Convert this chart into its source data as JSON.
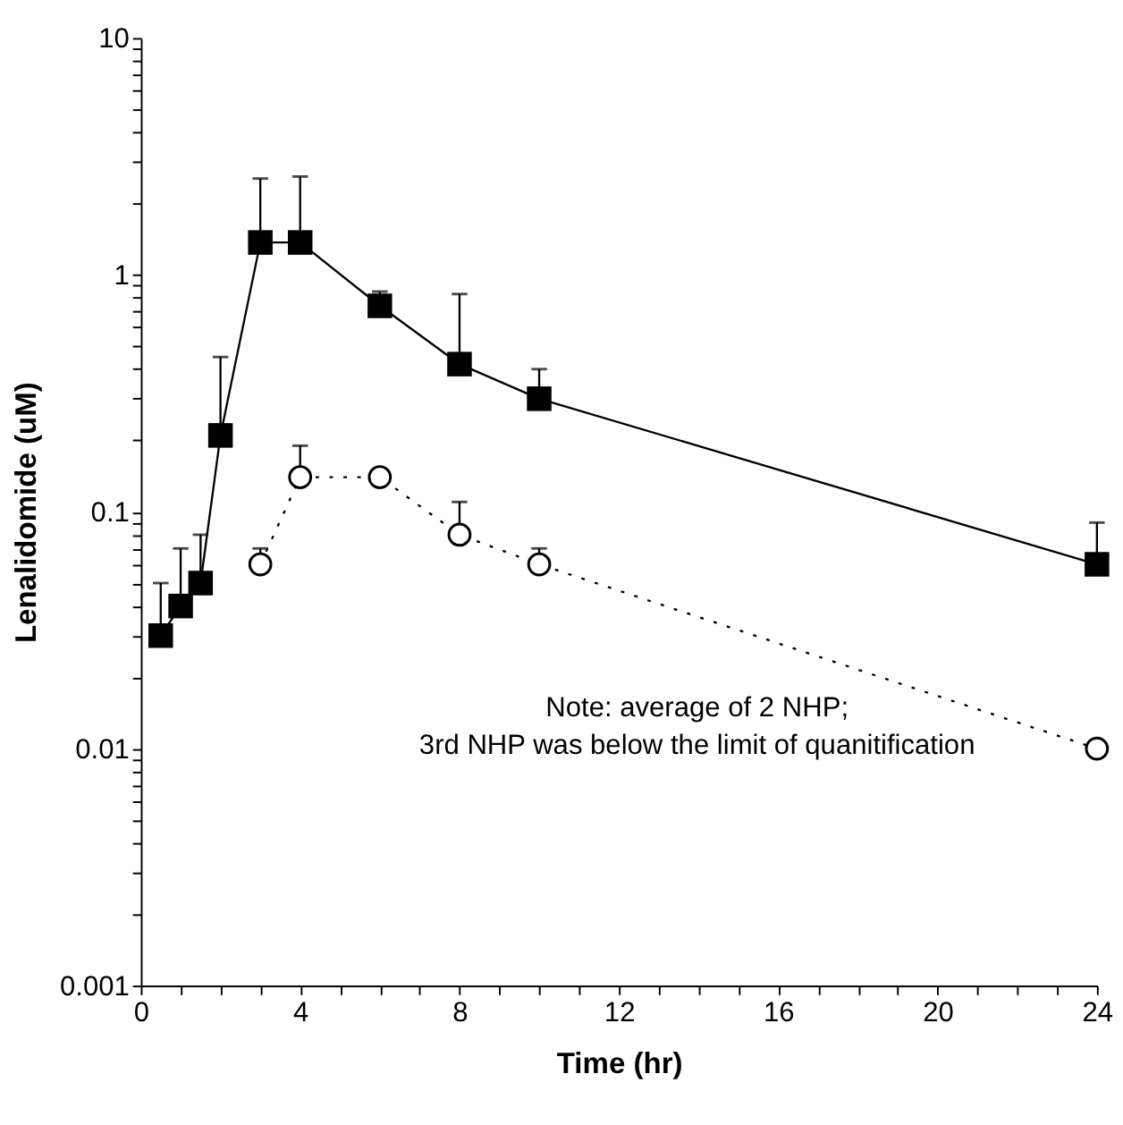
{
  "chart_data": {
    "type": "line",
    "xlabel": "Time (hr)",
    "ylabel": "Lenalidomide (uM)",
    "log": "y",
    "grid": false,
    "xlim": [
      0,
      24
    ],
    "ylim": [
      0.001,
      10
    ],
    "xticks": [
      0,
      {
        "value": 1,
        "label": null
      },
      {
        "value": 2,
        "label": null
      },
      {
        "value": 3,
        "label": null
      },
      4,
      {
        "value": 5,
        "label": null
      },
      {
        "value": 6,
        "label": null
      },
      {
        "value": 7,
        "label": null
      },
      8,
      {
        "value": 9,
        "label": null
      },
      {
        "value": 10,
        "label": null
      },
      {
        "value": 11,
        "label": null
      },
      12,
      {
        "value": 13,
        "label": null
      },
      {
        "value": 14,
        "label": null
      },
      {
        "value": 15,
        "label": null
      },
      16,
      {
        "value": 17,
        "label": null
      },
      {
        "value": 18,
        "label": null
      },
      {
        "value": 19,
        "label": null
      },
      20,
      {
        "value": 21,
        "label": null
      },
      {
        "value": 22,
        "label": null
      },
      {
        "value": 23,
        "label": null
      },
      24
    ],
    "yticks": [
      0.001,
      {
        "value": 0.002,
        "label": null
      },
      {
        "value": 0.003,
        "label": null
      },
      {
        "value": 0.004,
        "label": null
      },
      {
        "value": 0.005,
        "label": null
      },
      {
        "value": 0.006,
        "label": null
      },
      {
        "value": 0.007,
        "label": null
      },
      {
        "value": 0.008,
        "label": null
      },
      {
        "value": 0.009,
        "label": null
      },
      0.01,
      {
        "value": 0.02,
        "label": null
      },
      {
        "value": 0.03,
        "label": null
      },
      {
        "value": 0.04,
        "label": null
      },
      {
        "value": 0.05,
        "label": null
      },
      {
        "value": 0.06,
        "label": null
      },
      {
        "value": 0.07,
        "label": null
      },
      {
        "value": 0.08,
        "label": null
      },
      {
        "value": 0.09,
        "label": null
      },
      0.1,
      {
        "value": 0.2,
        "label": null
      },
      {
        "value": 0.3,
        "label": null
      },
      {
        "value": 0.4,
        "label": null
      },
      {
        "value": 0.5,
        "label": null
      },
      {
        "value": 0.6,
        "label": null
      },
      {
        "value": 0.7,
        "label": null
      },
      {
        "value": 0.8,
        "label": null
      },
      {
        "value": 0.9,
        "label": null
      },
      1,
      {
        "value": 2,
        "label": null
      },
      {
        "value": 3,
        "label": null
      },
      {
        "value": 4,
        "label": null
      },
      {
        "value": 5,
        "label": null
      },
      {
        "value": 6,
        "label": null
      },
      {
        "value": 7,
        "label": null
      },
      {
        "value": 8,
        "label": null
      },
      {
        "value": 9,
        "label": null
      },
      10
    ],
    "series": [
      {
        "color": "#000000",
        "marker": "square",
        "line_style": "solid",
        "x": [
          0.5,
          1,
          1.5,
          2,
          3,
          4,
          6,
          8,
          10,
          24
        ],
        "values": [
          0.03,
          0.04,
          0.05,
          0.21,
          1.37,
          1.37,
          0.74,
          0.42,
          0.3,
          0.06
        ],
        "errors": [
          [
            0.03,
            0.05
          ],
          [
            0.04,
            0.07
          ],
          [
            0.05,
            0.08
          ],
          [
            0.21,
            0.45
          ],
          [
            1.37,
            2.55
          ],
          [
            1.37,
            2.6
          ],
          [
            0.74,
            0.85
          ],
          [
            0.42,
            0.83
          ],
          [
            0.3,
            0.4
          ],
          [
            0.06,
            0.09
          ]
        ]
      },
      {
        "color": "#000000",
        "marker": "circle",
        "line_style": "dotted",
        "x": [
          3,
          4,
          6,
          8,
          10,
          24
        ],
        "values": [
          0.06,
          0.14,
          0.14,
          0.08,
          0.06,
          0.01
        ],
        "errors": [
          [
            0.06,
            0.07
          ],
          [
            0.14,
            0.19
          ],
          null,
          [
            0.08,
            0.11
          ],
          [
            0.06,
            0.07
          ],
          null
        ]
      }
    ],
    "annotations": [
      "Note: average of 2 NHP;",
      "3rd NHP was below the limit of quanitification"
    ]
  }
}
